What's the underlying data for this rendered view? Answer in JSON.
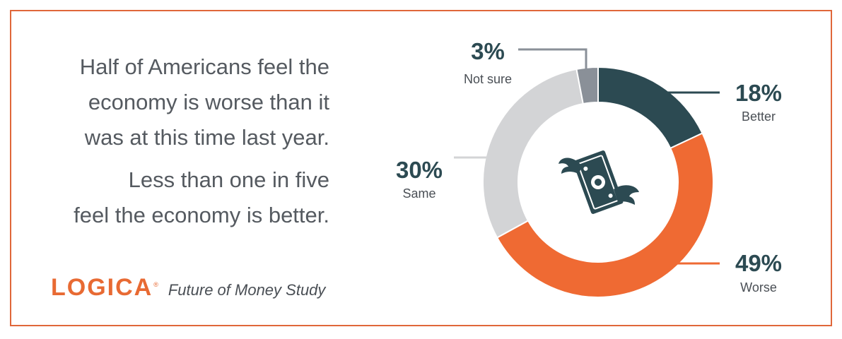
{
  "headline": "Half of Americans feel the economy is worse than it was at this time last year.",
  "headline_lines": [
    "Half of Americans feel the",
    "economy is worse than it",
    "was at this time last year."
  ],
  "subline_lines": [
    "Less than one in five",
    "feel the economy is better."
  ],
  "brand": {
    "logo": "LOGICA",
    "registered_mark": "®",
    "study": "Future of Money Study"
  },
  "icon": "flying-money-icon",
  "colors": {
    "frame": "#e0673a",
    "better": "#2c4a52",
    "worse": "#ef6a33",
    "same": "#d3d4d6",
    "not_sure": "#8a9098",
    "logo": "#e86a33",
    "text": "#555a60"
  },
  "chart_data": {
    "type": "pie",
    "donut": true,
    "unit": "%",
    "series": [
      {
        "name": "Better",
        "value": 18,
        "label": "18%",
        "color": "#2c4a52"
      },
      {
        "name": "Worse",
        "value": 49,
        "label": "49%",
        "color": "#ef6a33"
      },
      {
        "name": "Same",
        "value": 30,
        "label": "30%",
        "color": "#d3d4d6"
      },
      {
        "name": "Not sure",
        "value": 3,
        "label": "3%",
        "color": "#8a9098"
      }
    ]
  }
}
